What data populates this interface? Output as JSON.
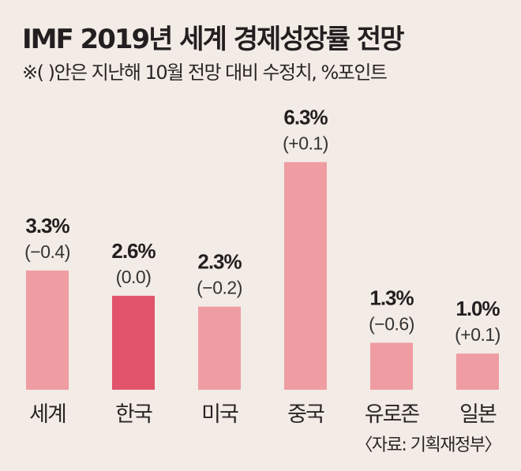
{
  "title": "IMF 2019년 세계 경제성장률 전망",
  "subtitle": "※(   )안은 지난해 10월 전망 대비 수정치, %포인트",
  "source": "〈자료: 기획재정부〉",
  "colors": {
    "background": "#f3ebe5",
    "bar": "#ef9ca2",
    "highlight": "#e1546c"
  },
  "chart_data": {
    "type": "bar",
    "title": "IMF 2019년 세계 경제성장률 전망",
    "xlabel": "",
    "ylabel": "",
    "ylim": [
      0,
      7
    ],
    "grid": false,
    "categories": [
      "세계",
      "한국",
      "미국",
      "중국",
      "유로존",
      "일본"
    ],
    "values": [
      3.3,
      2.6,
      2.3,
      6.3,
      1.3,
      1.0
    ],
    "value_labels": [
      "3.3%",
      "2.6%",
      "2.3%",
      "6.3%",
      "1.3%",
      "1.0%"
    ],
    "change_labels": [
      "(−0.4)",
      "(0.0)",
      "(−0.2)",
      "(+0.1)",
      "(−0.6)",
      "(+0.1)"
    ],
    "changes": [
      -0.4,
      0.0,
      -0.2,
      0.1,
      -0.6,
      0.1
    ],
    "highlight": "한국"
  }
}
